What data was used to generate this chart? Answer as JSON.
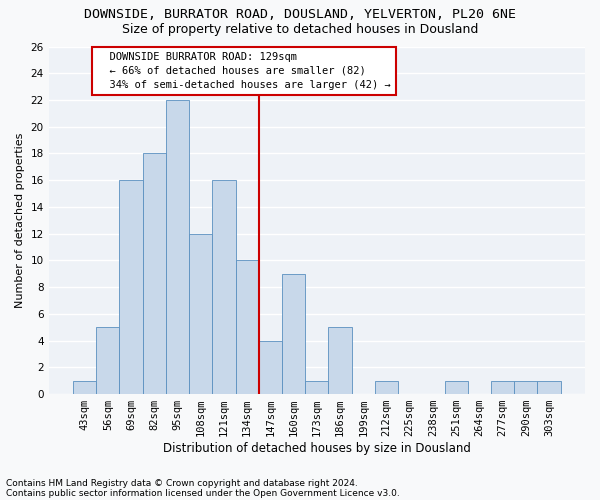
{
  "title1": "DOWNSIDE, BURRATOR ROAD, DOUSLAND, YELVERTON, PL20 6NE",
  "title2": "Size of property relative to detached houses in Dousland",
  "xlabel": "Distribution of detached houses by size in Dousland",
  "ylabel": "Number of detached properties",
  "footnote1": "Contains HM Land Registry data © Crown copyright and database right 2024.",
  "footnote2": "Contains public sector information licensed under the Open Government Licence v3.0.",
  "annotation_line1": "  DOWNSIDE BURRATOR ROAD: 129sqm",
  "annotation_line2": "  ← 66% of detached houses are smaller (82)",
  "annotation_line3": "  34% of semi-detached houses are larger (42) →",
  "bar_color": "#c8d8ea",
  "bar_edge_color": "#5a90c0",
  "vline_color": "#cc0000",
  "vline_x": 7.5,
  "categories": [
    "43sqm",
    "56sqm",
    "69sqm",
    "82sqm",
    "95sqm",
    "108sqm",
    "121sqm",
    "134sqm",
    "147sqm",
    "160sqm",
    "173sqm",
    "186sqm",
    "199sqm",
    "212sqm",
    "225sqm",
    "238sqm",
    "251sqm",
    "264sqm",
    "277sqm",
    "290sqm",
    "303sqm"
  ],
  "values": [
    1,
    5,
    16,
    18,
    22,
    12,
    16,
    10,
    4,
    9,
    1,
    5,
    0,
    1,
    0,
    0,
    1,
    0,
    1,
    1,
    1
  ],
  "ylim": [
    0,
    26
  ],
  "yticks": [
    0,
    2,
    4,
    6,
    8,
    10,
    12,
    14,
    16,
    18,
    20,
    22,
    24,
    26
  ],
  "bg_color": "#eef2f7",
  "grid_color": "#ffffff",
  "fig_bg_color": "#f8f9fa",
  "title1_fontsize": 9.5,
  "title2_fontsize": 9,
  "xlabel_fontsize": 8.5,
  "ylabel_fontsize": 8,
  "tick_fontsize": 7.5,
  "footnote_fontsize": 6.5,
  "ann_fontsize": 7.5
}
